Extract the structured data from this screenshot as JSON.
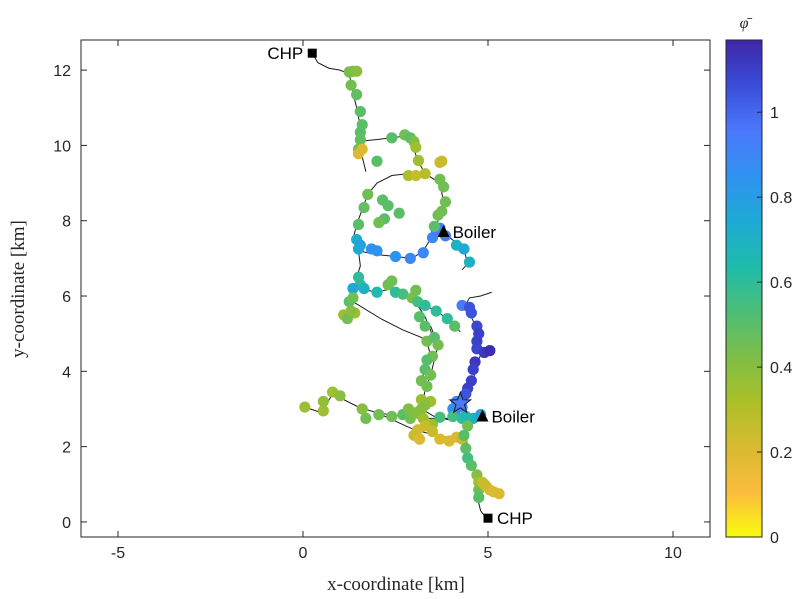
{
  "chart_data": {
    "type": "scatter",
    "title": "",
    "xlabel": "x-coordinate [km]",
    "ylabel": "y-coordinate [km]",
    "xlim": [
      -6,
      11
    ],
    "ylim": [
      -0.4,
      12.8
    ],
    "xticks": [
      -5,
      0,
      5,
      10
    ],
    "yticks": [
      0,
      2,
      4,
      6,
      8,
      10,
      12
    ],
    "grid": false,
    "colorbar": {
      "title": "φ̄",
      "range": [
        0,
        1.17
      ],
      "ticks": [
        0,
        0.2,
        0.4,
        0.6,
        0.8,
        1
      ],
      "colormap": "parula",
      "stops": [
        "#f9fb0e",
        "#fbbc3d",
        "#d7ba2f",
        "#abc028",
        "#7dbe47",
        "#4bbe77",
        "#1ebcab",
        "#1ea9d5",
        "#3092f0",
        "#4b78fc",
        "#3a4dd9",
        "#3e26a8"
      ]
    },
    "network_paths": [
      [
        [
          0.25,
          12.45
        ],
        [
          0.4,
          12.2
        ],
        [
          0.7,
          12.05
        ],
        [
          1.0,
          12.0
        ],
        [
          1.25,
          11.9
        ]
      ],
      [
        [
          1.25,
          11.9
        ],
        [
          1.35,
          11.4
        ],
        [
          1.45,
          11.0
        ],
        [
          1.55,
          10.5
        ],
        [
          1.5,
          10.2
        ],
        [
          1.45,
          9.8
        ]
      ],
      [
        [
          1.45,
          10.1
        ],
        [
          2.4,
          10.2
        ],
        [
          2.75,
          10.25
        ],
        [
          2.9,
          10.2
        ],
        [
          3.05,
          9.95
        ]
      ],
      [
        [
          2.9,
          10.2
        ],
        [
          3.1,
          9.6
        ],
        [
          3.3,
          9.25
        ],
        [
          3.7,
          9.0
        ],
        [
          3.8,
          8.5
        ],
        [
          3.75,
          8.2
        ],
        [
          3.55,
          7.8
        ]
      ],
      [
        [
          1.55,
          10.2
        ],
        [
          1.6,
          9.7
        ],
        [
          1.7,
          9.3
        ]
      ],
      [
        [
          2.85,
          9.25
        ],
        [
          2.4,
          9.2
        ],
        [
          2.0,
          9.0
        ],
        [
          1.75,
          8.7
        ],
        [
          1.6,
          8.3
        ],
        [
          1.45,
          7.9
        ],
        [
          1.35,
          7.5
        ],
        [
          1.5,
          7.2
        ],
        [
          1.55,
          6.8
        ],
        [
          1.45,
          6.5
        ]
      ],
      [
        [
          1.5,
          7.2
        ],
        [
          2.0,
          7.1
        ],
        [
          2.5,
          7.05
        ],
        [
          2.95,
          7.0
        ],
        [
          3.25,
          7.2
        ],
        [
          3.5,
          7.6
        ],
        [
          3.7,
          7.75
        ]
      ],
      [
        [
          3.7,
          7.75
        ],
        [
          4.1,
          7.45
        ],
        [
          4.35,
          7.25
        ],
        [
          4.45,
          6.85
        ],
        [
          4.3,
          6.7
        ]
      ],
      [
        [
          1.45,
          6.5
        ],
        [
          1.5,
          6.2
        ],
        [
          2.0,
          6.1
        ],
        [
          2.4,
          6.2
        ],
        [
          2.7,
          6.05
        ],
        [
          3.0,
          5.9
        ],
        [
          3.3,
          5.75
        ],
        [
          3.6,
          5.6
        ],
        [
          3.9,
          5.4
        ],
        [
          4.1,
          5.2
        ],
        [
          4.25,
          5.05
        ]
      ],
      [
        [
          1.45,
          6.2
        ],
        [
          1.35,
          5.8
        ],
        [
          1.1,
          5.45
        ]
      ],
      [
        [
          1.35,
          5.85
        ],
        [
          2.1,
          5.4
        ],
        [
          2.7,
          5.1
        ],
        [
          3.2,
          4.9
        ],
        [
          3.35,
          4.8
        ],
        [
          3.45,
          4.4
        ],
        [
          3.3,
          4.0
        ],
        [
          3.15,
          3.7
        ]
      ],
      [
        [
          3.0,
          5.9
        ],
        [
          3.3,
          5.45
        ],
        [
          3.5,
          4.95
        ]
      ],
      [
        [
          3.45,
          5.2
        ],
        [
          3.65,
          4.7
        ],
        [
          3.55,
          4.3
        ],
        [
          3.45,
          3.9
        ],
        [
          3.3,
          3.5
        ],
        [
          3.2,
          3.0
        ],
        [
          3.55,
          2.8
        ],
        [
          4.0,
          2.7
        ]
      ],
      [
        [
          4.35,
          5.7
        ],
        [
          4.55,
          5.45
        ],
        [
          4.7,
          5.1
        ],
        [
          4.75,
          4.8
        ],
        [
          4.85,
          4.55
        ],
        [
          4.7,
          4.2
        ],
        [
          4.6,
          3.75
        ],
        [
          4.45,
          3.4
        ],
        [
          4.35,
          3.0
        ]
      ],
      [
        [
          4.35,
          5.7
        ],
        [
          4.5,
          5.95
        ],
        [
          4.8,
          6.0
        ],
        [
          5.1,
          6.1
        ]
      ],
      [
        [
          0.05,
          3.05
        ],
        [
          0.5,
          2.9
        ],
        [
          0.8,
          3.4
        ],
        [
          1.5,
          3.05
        ],
        [
          2.0,
          2.9
        ],
        [
          2.7,
          2.8
        ],
        [
          3.2,
          2.75
        ],
        [
          3.7,
          2.75
        ],
        [
          4.4,
          2.75
        ],
        [
          4.7,
          2.78
        ],
        [
          4.9,
          2.8
        ]
      ],
      [
        [
          2.0,
          2.9
        ],
        [
          3.0,
          2.45
        ],
        [
          3.6,
          2.3
        ],
        [
          4.2,
          2.2
        ]
      ],
      [
        [
          4.4,
          2.75
        ],
        [
          4.45,
          2.3
        ],
        [
          4.4,
          1.9
        ],
        [
          4.55,
          1.5
        ],
        [
          4.75,
          1.2
        ],
        [
          4.7,
          0.9
        ],
        [
          4.75,
          0.5
        ],
        [
          4.8,
          0.3
        ],
        [
          4.95,
          0.1
        ]
      ],
      [
        [
          4.7,
          1.2
        ],
        [
          4.95,
          1.0
        ],
        [
          5.25,
          0.75
        ]
      ]
    ],
    "nodes": [
      [
        1.25,
        11.95,
        0.45
      ],
      [
        1.35,
        11.97,
        0.42
      ],
      [
        1.45,
        11.97,
        0.4
      ],
      [
        1.3,
        11.6,
        0.45
      ],
      [
        1.45,
        11.35,
        0.48
      ],
      [
        1.55,
        10.9,
        0.5
      ],
      [
        1.6,
        10.55,
        0.5
      ],
      [
        1.55,
        10.35,
        0.5
      ],
      [
        1.55,
        10.15,
        0.48
      ],
      [
        1.5,
        9.9,
        0.45
      ],
      [
        1.5,
        9.78,
        0.2
      ],
      [
        1.6,
        9.9,
        0.2
      ],
      [
        2.4,
        10.2,
        0.5
      ],
      [
        2.75,
        10.28,
        0.45
      ],
      [
        2.9,
        10.2,
        0.5
      ],
      [
        3.0,
        10.1,
        0.42
      ],
      [
        3.05,
        9.95,
        0.35
      ],
      [
        3.12,
        9.6,
        0.35
      ],
      [
        3.7,
        9.55,
        0.22
      ],
      [
        3.75,
        9.58,
        0.25
      ],
      [
        2.0,
        9.58,
        0.5
      ],
      [
        1.75,
        8.7,
        0.45
      ],
      [
        1.65,
        8.35,
        0.48
      ],
      [
        2.15,
        8.55,
        0.5
      ],
      [
        2.3,
        8.4,
        0.5
      ],
      [
        2.6,
        8.2,
        0.5
      ],
      [
        1.5,
        7.9,
        0.5
      ],
      [
        1.45,
        7.5,
        0.72
      ],
      [
        1.55,
        7.35,
        0.8
      ],
      [
        1.5,
        7.25,
        0.75
      ],
      [
        2.2,
        8.05,
        0.5
      ],
      [
        2.05,
        7.95,
        0.45
      ],
      [
        1.85,
        7.25,
        0.85
      ],
      [
        2.0,
        7.2,
        0.85
      ],
      [
        2.5,
        7.05,
        0.85
      ],
      [
        2.9,
        7.0,
        0.9
      ],
      [
        3.25,
        7.15,
        0.9
      ],
      [
        3.5,
        7.55,
        0.9
      ],
      [
        3.6,
        7.75,
        0.95
      ],
      [
        3.7,
        7.8,
        0.93
      ],
      [
        3.85,
        7.6,
        0.95
      ],
      [
        4.15,
        7.35,
        0.7
      ],
      [
        4.35,
        7.25,
        0.75
      ],
      [
        4.5,
        6.9,
        0.7
      ],
      [
        2.85,
        9.2,
        0.32
      ],
      [
        3.05,
        9.2,
        0.25
      ],
      [
        3.3,
        9.25,
        0.3
      ],
      [
        3.7,
        9.1,
        0.45
      ],
      [
        3.8,
        8.9,
        0.45
      ],
      [
        3.85,
        8.5,
        0.45
      ],
      [
        3.75,
        8.25,
        0.45
      ],
      [
        3.55,
        7.85,
        0.5
      ],
      [
        3.65,
        8.15,
        0.45
      ],
      [
        1.5,
        6.5,
        0.6
      ],
      [
        1.55,
        6.3,
        0.6
      ],
      [
        1.35,
        6.2,
        0.75
      ],
      [
        1.65,
        6.2,
        0.7
      ],
      [
        2.0,
        6.1,
        0.65
      ],
      [
        2.3,
        6.3,
        0.45
      ],
      [
        2.4,
        6.4,
        0.45
      ],
      [
        2.5,
        6.1,
        0.6
      ],
      [
        2.7,
        6.05,
        0.55
      ],
      [
        2.95,
        5.95,
        0.42
      ],
      [
        3.1,
        5.85,
        0.55
      ],
      [
        3.3,
        5.75,
        0.6
      ],
      [
        3.6,
        5.6,
        0.6
      ],
      [
        3.9,
        5.4,
        0.6
      ],
      [
        4.1,
        5.2,
        0.5
      ],
      [
        1.25,
        5.85,
        0.5
      ],
      [
        1.35,
        5.95,
        0.45
      ],
      [
        1.4,
        5.55,
        0.35
      ],
      [
        1.1,
        5.5,
        0.35
      ],
      [
        1.2,
        5.4,
        0.45
      ],
      [
        1.3,
        5.6,
        0.4
      ],
      [
        3.05,
        6.15,
        0.45
      ],
      [
        3.15,
        5.45,
        0.5
      ],
      [
        3.3,
        5.2,
        0.5
      ],
      [
        3.35,
        4.8,
        0.45
      ],
      [
        3.55,
        4.9,
        0.5
      ],
      [
        3.65,
        4.7,
        0.45
      ],
      [
        3.5,
        4.4,
        0.45
      ],
      [
        3.35,
        4.3,
        0.5
      ],
      [
        3.3,
        4.05,
        0.5
      ],
      [
        3.45,
        3.9,
        0.45
      ],
      [
        3.2,
        3.75,
        0.45
      ],
      [
        3.35,
        3.6,
        0.45
      ],
      [
        3.2,
        3.25,
        0.35
      ],
      [
        3.45,
        3.2,
        0.35
      ],
      [
        3.3,
        3.1,
        0.4
      ],
      [
        3.2,
        3.0,
        0.4
      ],
      [
        4.3,
        5.75,
        0.95
      ],
      [
        4.5,
        5.7,
        1.05
      ],
      [
        4.55,
        5.55,
        1.05
      ],
      [
        4.7,
        5.2,
        1.08
      ],
      [
        4.75,
        5.0,
        1.1
      ],
      [
        4.7,
        4.8,
        1.1
      ],
      [
        4.7,
        4.6,
        1.08
      ],
      [
        4.9,
        4.5,
        1.12
      ],
      [
        5.05,
        4.55,
        1.15
      ],
      [
        4.65,
        4.25,
        1.12
      ],
      [
        4.6,
        4.05,
        1.1
      ],
      [
        4.55,
        3.75,
        1.1
      ],
      [
        4.45,
        3.55,
        1.1
      ],
      [
        4.4,
        3.4,
        1.05
      ],
      [
        4.3,
        3.05,
        0.9
      ],
      [
        4.15,
        3.2,
        0.9
      ],
      [
        4.05,
        3.0,
        0.85
      ],
      [
        4.1,
        2.85,
        0.9
      ],
      [
        0.05,
        3.05,
        0.35
      ],
      [
        0.55,
        2.95,
        0.35
      ],
      [
        0.8,
        3.45,
        0.35
      ],
      [
        1.0,
        3.35,
        0.4
      ],
      [
        0.55,
        3.2,
        0.38
      ],
      [
        1.6,
        3.0,
        0.4
      ],
      [
        1.7,
        2.75,
        0.45
      ],
      [
        2.05,
        2.85,
        0.45
      ],
      [
        2.4,
        2.8,
        0.45
      ],
      [
        2.7,
        2.85,
        0.5
      ],
      [
        2.85,
        3.0,
        0.42
      ],
      [
        2.9,
        2.75,
        0.45
      ],
      [
        3.05,
        2.9,
        0.4
      ],
      [
        3.25,
        2.75,
        0.35
      ],
      [
        3.5,
        2.6,
        0.35
      ],
      [
        3.7,
        2.78,
        0.55
      ],
      [
        4.05,
        2.8,
        0.55
      ],
      [
        4.3,
        2.75,
        0.6
      ],
      [
        4.6,
        2.75,
        0.7
      ],
      [
        4.8,
        2.85,
        0.75
      ],
      [
        3.1,
        2.45,
        0.22
      ],
      [
        3.3,
        2.55,
        0.25
      ],
      [
        3.5,
        2.4,
        0.25
      ],
      [
        3.0,
        2.3,
        0.25
      ],
      [
        3.7,
        2.2,
        0.2
      ],
      [
        3.95,
        2.15,
        0.2
      ],
      [
        4.15,
        2.25,
        0.2
      ],
      [
        4.3,
        2.2,
        0.25
      ],
      [
        3.15,
        2.2,
        0.2
      ],
      [
        4.4,
        2.8,
        0.65
      ],
      [
        4.45,
        2.55,
        0.45
      ],
      [
        4.35,
        2.3,
        0.5
      ],
      [
        4.4,
        1.95,
        0.5
      ],
      [
        4.45,
        1.7,
        0.55
      ],
      [
        4.55,
        1.5,
        0.5
      ],
      [
        4.7,
        1.25,
        0.4
      ],
      [
        4.75,
        1.05,
        0.35
      ],
      [
        4.75,
        0.85,
        0.45
      ],
      [
        4.75,
        0.65,
        0.5
      ],
      [
        4.85,
        1.05,
        0.25
      ],
      [
        4.95,
        0.95,
        0.2
      ],
      [
        5.05,
        0.85,
        0.2
      ],
      [
        5.15,
        0.8,
        0.2
      ],
      [
        5.3,
        0.75,
        0.2
      ],
      [
        4.9,
        1.0,
        0.25
      ]
    ],
    "annotations": [
      {
        "text": "CHP",
        "x": 0.25,
        "y": 12.45,
        "marker": "square",
        "side": "left"
      },
      {
        "text": "Boiler",
        "x": 3.8,
        "y": 7.7,
        "marker": "triangle",
        "side": "right"
      },
      {
        "text": "Boiler",
        "x": 4.85,
        "y": 2.8,
        "marker": "triangle",
        "side": "right"
      },
      {
        "text": "CHP",
        "x": 5.0,
        "y": 0.1,
        "marker": "square",
        "side": "right"
      }
    ],
    "star": {
      "x": 4.25,
      "y": 3.15,
      "value": 0.85
    }
  }
}
